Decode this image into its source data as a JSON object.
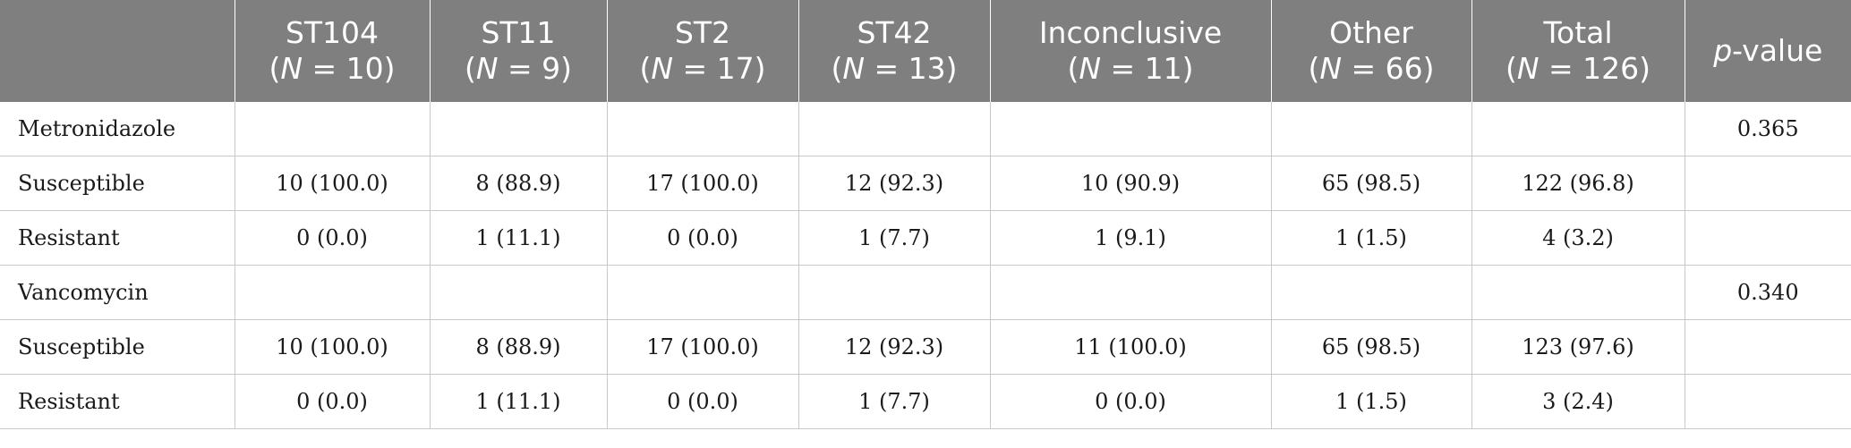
{
  "table": {
    "headers": [
      {
        "line1": "",
        "line2": ""
      },
      {
        "line1": "ST104",
        "n_prefix": "(",
        "n_var": "N",
        "n_rest": " = 10)"
      },
      {
        "line1": "ST11",
        "n_prefix": "(",
        "n_var": "N",
        "n_rest": " = 9)"
      },
      {
        "line1": "ST2",
        "n_prefix": "(",
        "n_var": "N",
        "n_rest": " = 17)"
      },
      {
        "line1": "ST42",
        "n_prefix": "(",
        "n_var": "N",
        "n_rest": " = 13)"
      },
      {
        "line1": "Inconclusive",
        "n_prefix": "(",
        "n_var": "N",
        "n_rest": " = 11)"
      },
      {
        "line1": "Other",
        "n_prefix": "(",
        "n_var": "N",
        "n_rest": " = 66)"
      },
      {
        "line1": "Total",
        "n_prefix": "(",
        "n_var": "N",
        "n_rest": " = 126)"
      },
      {
        "p_italic": "p",
        "p_rest": "-value"
      }
    ],
    "rows": [
      {
        "label": "Metronidazole",
        "cells": [
          "",
          "",
          "",
          "",
          "",
          "",
          ""
        ],
        "p": "0.365"
      },
      {
        "label": "Susceptible",
        "cells": [
          "10 (100.0)",
          "8 (88.9)",
          "17 (100.0)",
          "12 (92.3)",
          "10 (90.9)",
          "65 (98.5)",
          "122 (96.8)"
        ],
        "p": ""
      },
      {
        "label": "Resistant",
        "cells": [
          "0 (0.0)",
          "1 (11.1)",
          "0 (0.0)",
          "1 (7.7)",
          "1 (9.1)",
          "1 (1.5)",
          "4 (3.2)"
        ],
        "p": ""
      },
      {
        "label": "Vancomycin",
        "cells": [
          "",
          "",
          "",
          "",
          "",
          "",
          ""
        ],
        "p": "0.340"
      },
      {
        "label": "Susceptible",
        "cells": [
          "10 (100.0)",
          "8 (88.9)",
          "17 (100.0)",
          "12 (92.3)",
          "11 (100.0)",
          "65 (98.5)",
          "123 (97.6)"
        ],
        "p": ""
      },
      {
        "label": "Resistant",
        "cells": [
          "0 (0.0)",
          "1 (11.1)",
          "0 (0.0)",
          "1 (7.7)",
          "0 (0.0)",
          "1 (1.5)",
          "3 (2.4)"
        ],
        "p": ""
      }
    ]
  },
  "colors": {
    "header_bg": "#7f7f7f",
    "header_text": "#ffffff",
    "grid_line": "#c8c8c8"
  }
}
